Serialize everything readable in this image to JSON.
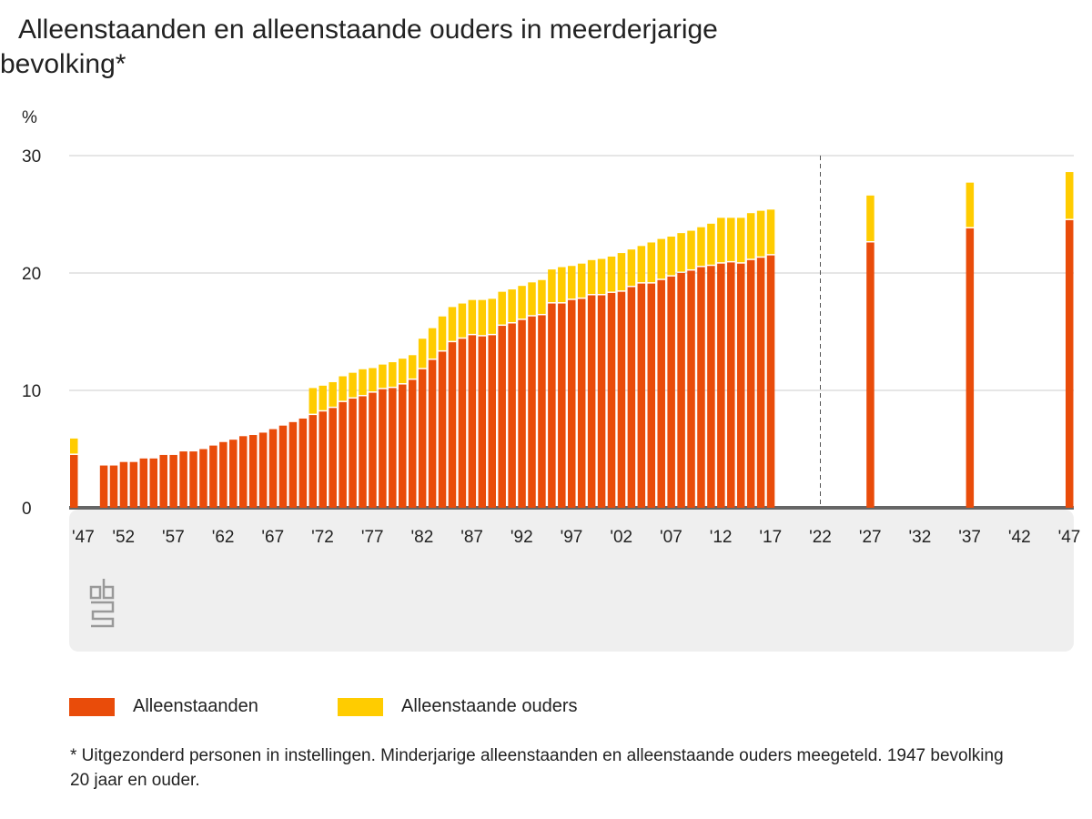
{
  "chart_data": {
    "type": "bar",
    "stacked": true,
    "title": "Alleenstaanden en alleenstaande ouders in meerderjarige bevolking*",
    "ylabel": "%",
    "ylim": [
      0,
      30
    ],
    "yticks": [
      0,
      10,
      20,
      30
    ],
    "xticks": [
      "'47",
      "'52",
      "'57",
      "'62",
      "'67",
      "'72",
      "'77",
      "'82",
      "'87",
      "'92",
      "'97",
      "'02",
      "'07",
      "'12",
      "'17",
      "'22",
      "'27",
      "'32",
      "'37",
      "'42",
      "'47"
    ],
    "grid": true,
    "legend_position": "bottom",
    "divider_year": 2022,
    "years": [
      1947,
      1950,
      1951,
      1952,
      1953,
      1954,
      1955,
      1956,
      1957,
      1958,
      1959,
      1960,
      1961,
      1962,
      1963,
      1964,
      1965,
      1966,
      1967,
      1968,
      1969,
      1970,
      1971,
      1972,
      1973,
      1974,
      1975,
      1976,
      1977,
      1978,
      1979,
      1980,
      1981,
      1982,
      1983,
      1984,
      1985,
      1986,
      1987,
      1988,
      1989,
      1990,
      1991,
      1992,
      1993,
      1994,
      1995,
      1996,
      1997,
      1998,
      1999,
      2000,
      2001,
      2002,
      2003,
      2004,
      2005,
      2006,
      2007,
      2008,
      2009,
      2010,
      2011,
      2012,
      2013,
      2014,
      2015,
      2016,
      2017,
      2027,
      2037,
      2047
    ],
    "series": [
      {
        "name": "Alleenstaanden",
        "color": "#e94c0a",
        "values": [
          4.5,
          3.6,
          3.6,
          3.9,
          3.9,
          4.2,
          4.2,
          4.5,
          4.5,
          4.8,
          4.8,
          5.0,
          5.3,
          5.6,
          5.8,
          6.1,
          6.2,
          6.4,
          6.7,
          7.0,
          7.3,
          7.6,
          7.9,
          8.2,
          8.5,
          9.0,
          9.3,
          9.5,
          9.8,
          10.1,
          10.2,
          10.5,
          10.9,
          11.8,
          12.6,
          13.3,
          14.1,
          14.4,
          14.7,
          14.6,
          14.7,
          15.5,
          15.7,
          16.0,
          16.3,
          16.4,
          17.4,
          17.4,
          17.7,
          17.8,
          18.1,
          18.1,
          18.3,
          18.4,
          18.8,
          19.1,
          19.1,
          19.4,
          19.7,
          20.0,
          20.2,
          20.5,
          20.6,
          20.8,
          20.9,
          20.8,
          21.1,
          21.3,
          21.5,
          22.6,
          23.8,
          24.5
        ]
      },
      {
        "name": "Alleenstaande ouders",
        "color": "#ffcc00",
        "values": [
          1.4,
          null,
          null,
          null,
          null,
          null,
          null,
          null,
          null,
          null,
          null,
          null,
          null,
          null,
          null,
          null,
          null,
          null,
          null,
          null,
          null,
          null,
          2.3,
          2.2,
          2.2,
          2.2,
          2.2,
          2.3,
          2.1,
          2.1,
          2.2,
          2.2,
          2.1,
          2.6,
          2.7,
          3.0,
          3.0,
          3.0,
          3.0,
          3.1,
          3.1,
          2.9,
          2.9,
          2.9,
          2.9,
          3.0,
          2.9,
          3.1,
          2.9,
          3.0,
          3.0,
          3.1,
          3.1,
          3.3,
          3.2,
          3.2,
          3.5,
          3.5,
          3.4,
          3.4,
          3.4,
          3.4,
          3.6,
          3.9,
          3.8,
          3.9,
          4.0,
          4.0,
          3.9,
          4.0,
          3.9,
          4.1
        ]
      }
    ]
  },
  "footnote": "* Uitgezonderd personen in instellingen. Minderjarige alleenstaanden en alleenstaande ouders meegeteld. 1947 bevolking 20 jaar en ouder.",
  "logo": "cbs"
}
